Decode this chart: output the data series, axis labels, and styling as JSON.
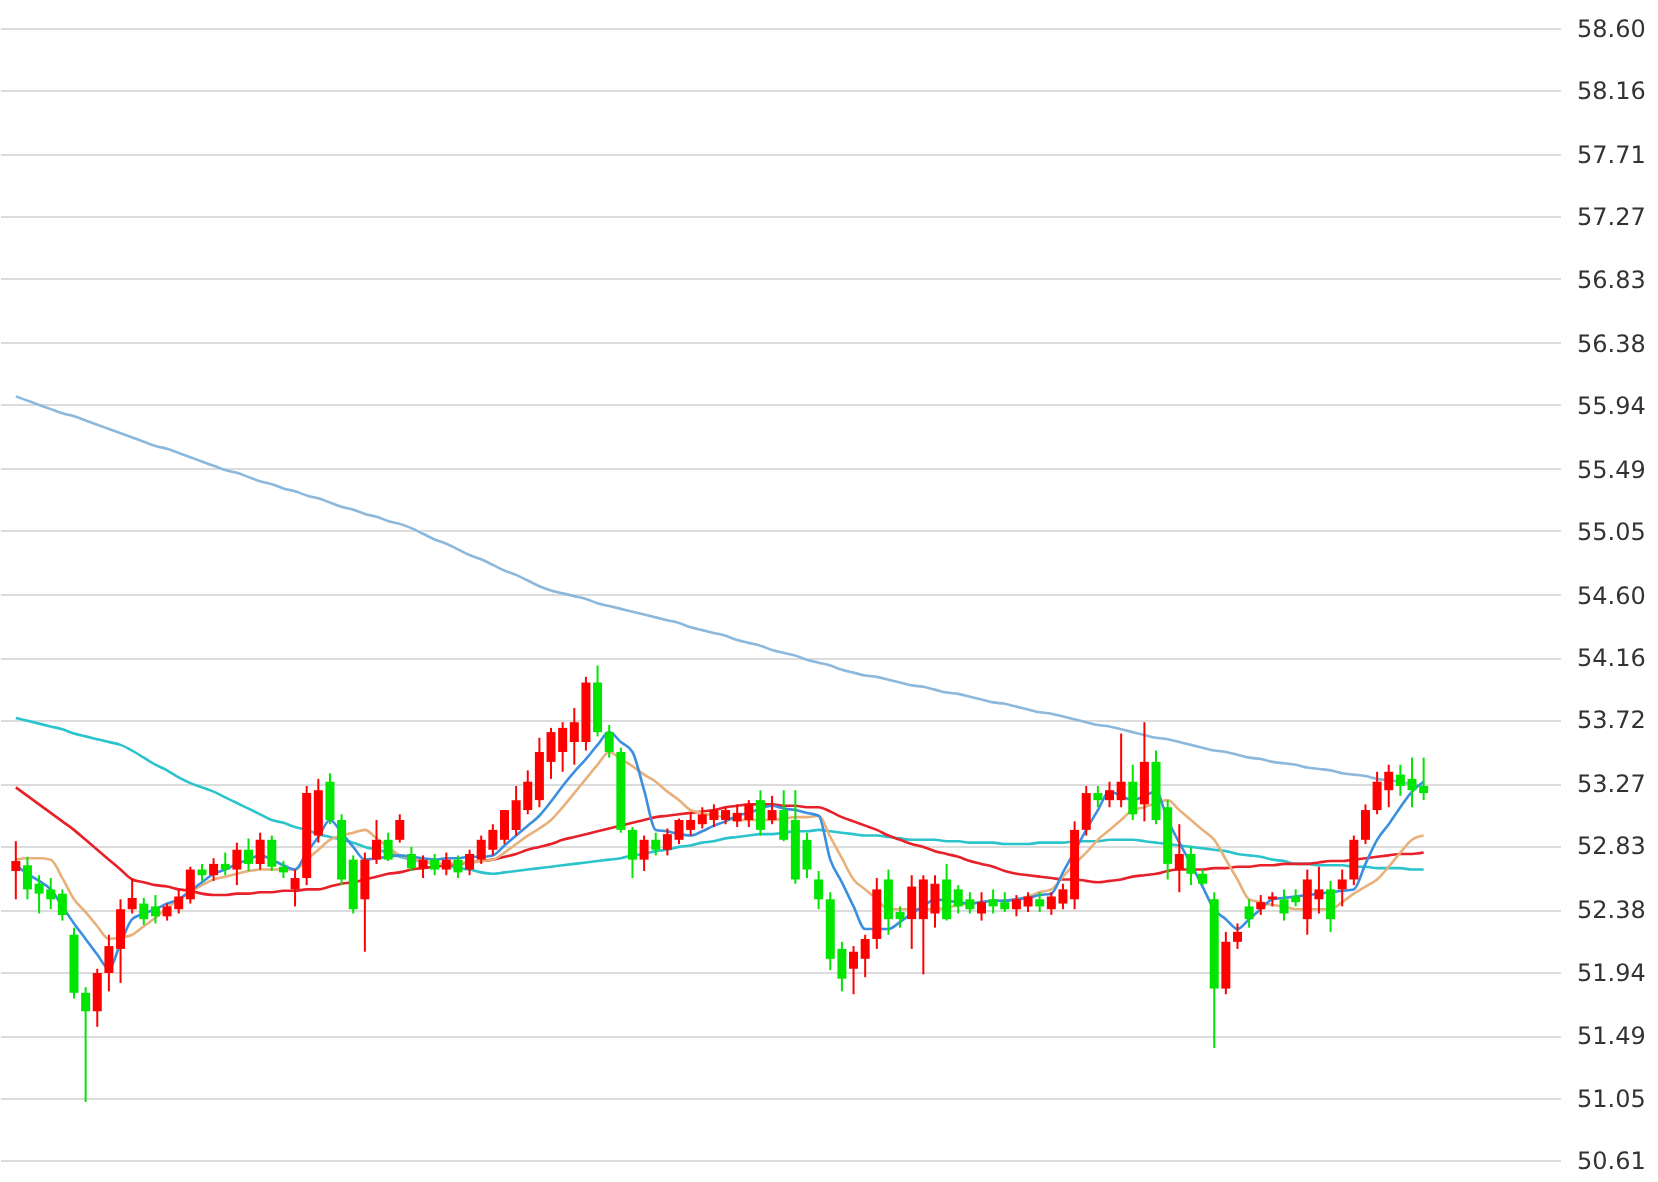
{
  "chart_data": {
    "type": "candlestick",
    "categories": [
      null,
      null,
      null,
      null,
      null,
      null,
      null,
      null,
      null,
      null,
      null,
      null,
      null,
      null,
      null,
      null,
      null,
      null,
      null,
      null,
      null,
      null,
      null,
      null,
      null,
      null,
      null,
      null,
      null,
      null,
      null,
      null,
      null,
      null,
      null,
      null,
      null,
      null,
      null,
      null,
      null,
      null,
      null,
      null,
      null,
      null,
      null,
      null,
      null,
      null,
      null,
      null,
      null,
      null,
      null,
      null,
      null,
      null,
      null,
      null,
      null,
      null,
      null,
      null,
      null,
      null,
      null,
      null,
      null,
      null,
      null,
      null,
      null,
      null,
      null,
      null,
      null,
      null,
      null,
      null,
      null,
      null,
      null,
      null,
      null,
      null,
      null,
      null,
      null,
      null,
      null,
      null,
      null,
      null,
      null,
      null,
      null,
      null,
      null,
      null,
      null,
      null,
      null,
      null,
      null,
      null,
      null,
      null,
      null,
      null,
      null,
      null,
      null,
      null,
      null,
      null,
      null,
      null,
      null,
      null,
      null,
      null
    ],
    "ylim": [
      50.61,
      58.6
    ],
    "yticks": [
      {
        "value": 58.6,
        "label": "58.60"
      },
      58.16,
      57.71,
      57.27,
      56.83,
      56.38,
      55.94,
      55.49,
      55.05,
      {
        "value": 54.6,
        "label": "54.60"
      },
      54.16,
      53.72,
      53.27,
      52.83,
      52.38,
      51.94,
      51.49,
      51.05,
      50.61
    ],
    "grid": "y",
    "tick_labels": "y",
    "series": [
      {
        "type": "line",
        "color": "#8cb8dc",
        "values": [
          56.0,
          55.97,
          55.94,
          55.91,
          55.88,
          55.86,
          55.83,
          55.8,
          55.77,
          55.74,
          55.71,
          55.68,
          55.65,
          55.63,
          55.6,
          55.57,
          55.54,
          55.51,
          55.48,
          55.46,
          55.43,
          55.4,
          55.38,
          55.35,
          55.33,
          55.3,
          55.28,
          55.25,
          55.22,
          55.2,
          55.17,
          55.15,
          55.12,
          55.1,
          55.07,
          55.03,
          54.99,
          54.96,
          54.92,
          54.88,
          54.85,
          54.81,
          54.77,
          54.74,
          54.7,
          54.66,
          54.63,
          54.61,
          54.59,
          54.57,
          54.54,
          54.52,
          54.5,
          54.48,
          54.46,
          54.44,
          54.42,
          54.4,
          54.37,
          54.35,
          54.33,
          54.31,
          54.28,
          54.26,
          54.24,
          54.21,
          54.19,
          54.17,
          54.14,
          54.12,
          54.1,
          54.07,
          54.05,
          54.03,
          54.02,
          54.0,
          53.98,
          53.96,
          53.95,
          53.93,
          53.91,
          53.9,
          53.88,
          53.86,
          53.84,
          53.83,
          53.81,
          53.79,
          53.77,
          53.76,
          53.74,
          53.72,
          53.7,
          53.68,
          53.67,
          53.65,
          53.63,
          53.61,
          53.59,
          53.58,
          53.56,
          53.54,
          53.52,
          53.5,
          53.49,
          53.47,
          53.45,
          53.44,
          53.42,
          53.41,
          53.4,
          53.38,
          53.37,
          53.36,
          53.34,
          53.33,
          53.32,
          53.3,
          53.29,
          53.28,
          53.26,
          53.25
        ]
      },
      {
        "type": "line",
        "color": "#2bc4cc",
        "values": [
          53.73,
          53.71,
          53.69,
          53.67,
          53.65,
          53.62,
          53.6,
          53.58,
          53.56,
          53.54,
          53.5,
          53.45,
          53.4,
          53.36,
          53.31,
          53.27,
          53.24,
          53.21,
          53.17,
          53.13,
          53.09,
          53.05,
          53.01,
          52.99,
          52.96,
          52.94,
          52.91,
          52.89,
          52.87,
          52.85,
          52.82,
          52.8,
          52.78,
          52.75,
          52.73,
          52.72,
          52.7,
          52.69,
          52.67,
          52.66,
          52.64,
          52.63,
          52.64,
          52.65,
          52.66,
          52.67,
          52.68,
          52.69,
          52.7,
          52.71,
          52.72,
          52.73,
          52.74,
          52.76,
          52.77,
          52.79,
          52.8,
          52.82,
          52.83,
          52.85,
          52.86,
          52.88,
          52.89,
          52.9,
          52.91,
          52.91,
          52.92,
          52.93,
          52.93,
          52.94,
          52.93,
          52.92,
          52.91,
          52.9,
          52.9,
          52.89,
          52.88,
          52.87,
          52.87,
          52.87,
          52.86,
          52.86,
          52.85,
          52.85,
          52.85,
          52.84,
          52.84,
          52.84,
          52.85,
          52.85,
          52.85,
          52.86,
          52.86,
          52.86,
          52.87,
          52.87,
          52.87,
          52.86,
          52.85,
          52.84,
          52.83,
          52.82,
          52.81,
          52.8,
          52.79,
          52.77,
          52.76,
          52.75,
          52.73,
          52.72,
          52.7,
          52.7,
          52.69,
          52.69,
          52.69,
          52.68,
          52.68,
          52.67,
          52.67,
          52.67,
          52.66,
          52.66
        ]
      },
      {
        "type": "line",
        "color": "#e8202a",
        "values": [
          53.24,
          53.18,
          53.12,
          53.06,
          53.0,
          52.94,
          52.87,
          52.8,
          52.73,
          52.66,
          52.59,
          52.57,
          52.55,
          52.54,
          52.52,
          52.51,
          52.49,
          52.48,
          52.48,
          52.49,
          52.49,
          52.5,
          52.5,
          52.51,
          52.51,
          52.52,
          52.52,
          52.54,
          52.56,
          52.57,
          52.59,
          52.61,
          52.63,
          52.64,
          52.66,
          52.67,
          52.68,
          52.69,
          52.7,
          52.71,
          52.72,
          52.73,
          52.75,
          52.77,
          52.8,
          52.82,
          52.84,
          52.87,
          52.89,
          52.91,
          52.93,
          52.95,
          52.97,
          52.99,
          53.01,
          53.03,
          53.04,
          53.05,
          53.06,
          53.07,
          53.08,
          53.1,
          53.11,
          53.12,
          53.12,
          53.12,
          53.11,
          53.11,
          53.1,
          53.1,
          53.07,
          53.03,
          53.0,
          52.97,
          52.94,
          52.9,
          52.87,
          52.84,
          52.82,
          52.79,
          52.77,
          52.75,
          52.72,
          52.7,
          52.68,
          52.65,
          52.63,
          52.62,
          52.61,
          52.6,
          52.59,
          52.59,
          52.58,
          52.57,
          52.58,
          52.59,
          52.61,
          52.62,
          52.63,
          52.65,
          52.66,
          52.66,
          52.66,
          52.67,
          52.67,
          52.68,
          52.68,
          52.69,
          52.69,
          52.7,
          52.7,
          52.7,
          52.71,
          52.72,
          52.72,
          52.73,
          52.74,
          52.75,
          52.76,
          52.77,
          52.77,
          52.78
        ]
      },
      {
        "type": "line",
        "color": "#e8b07a",
        "values": [
          52.73,
          52.74,
          52.74,
          52.73,
          52.6,
          52.45,
          52.36,
          52.26,
          52.17,
          52.18,
          52.2,
          52.26,
          52.32,
          52.39,
          52.45,
          52.5,
          52.55,
          52.59,
          52.61,
          52.63,
          52.65,
          52.66,
          52.66,
          52.66,
          52.66,
          52.73,
          52.8,
          52.87,
          52.9,
          52.92,
          52.94,
          52.88,
          52.82,
          52.76,
          52.74,
          52.72,
          52.7,
          52.7,
          52.71,
          52.71,
          52.72,
          52.73,
          52.78,
          52.84,
          52.9,
          52.95,
          53.01,
          53.1,
          53.2,
          53.3,
          53.4,
          53.49,
          53.44,
          53.39,
          53.33,
          53.28,
          53.21,
          53.15,
          53.08,
          53.06,
          53.04,
          53.03,
          53.01,
          53.01,
          53.01,
          53.01,
          53.02,
          53.03,
          53.03,
          53.04,
          52.89,
          52.74,
          52.59,
          52.52,
          52.45,
          52.38,
          52.38,
          52.38,
          52.38,
          52.38,
          52.39,
          52.41,
          52.42,
          52.43,
          52.44,
          52.44,
          52.45,
          52.47,
          52.5,
          52.52,
          52.61,
          52.7,
          52.78,
          52.87,
          52.94,
          53.01,
          53.08,
          53.1,
          53.13,
          53.15,
          53.08,
          53.01,
          52.94,
          52.87,
          52.73,
          52.59,
          52.45,
          52.43,
          52.41,
          52.4,
          52.38,
          52.38,
          52.38,
          52.38,
          52.43,
          52.49,
          52.54,
          52.59,
          52.68,
          52.78,
          52.87,
          52.9
        ]
      },
      {
        "type": "line",
        "color": "#3b8fe0",
        "values": [
          52.69,
          52.63,
          52.58,
          52.52,
          52.4,
          52.28,
          52.17,
          52.06,
          51.96,
          52.14,
          52.31,
          52.35,
          52.38,
          52.42,
          52.45,
          52.51,
          52.57,
          52.63,
          52.66,
          52.7,
          52.73,
          52.76,
          52.73,
          52.69,
          52.66,
          52.78,
          52.89,
          53.01,
          52.92,
          52.82,
          52.73,
          52.74,
          52.75,
          52.76,
          52.75,
          52.74,
          52.73,
          52.74,
          52.74,
          52.75,
          52.75,
          52.76,
          52.83,
          52.9,
          52.97,
          53.04,
          53.14,
          53.25,
          53.35,
          53.44,
          53.54,
          53.63,
          53.56,
          53.49,
          53.22,
          52.94,
          52.93,
          52.91,
          52.9,
          52.93,
          52.97,
          53.0,
          53.04,
          53.06,
          53.09,
          53.11,
          53.09,
          53.08,
          53.06,
          53.04,
          52.73,
          52.57,
          52.4,
          52.24,
          52.24,
          52.24,
          52.29,
          52.35,
          52.4,
          52.45,
          52.44,
          52.43,
          52.42,
          52.43,
          52.44,
          52.44,
          52.45,
          52.46,
          52.48,
          52.49,
          52.64,
          52.79,
          52.94,
          53.08,
          53.21,
          53.18,
          53.15,
          53.18,
          53.21,
          53.01,
          52.85,
          52.7,
          52.54,
          52.38,
          52.31,
          52.24,
          52.31,
          52.38,
          52.45,
          52.46,
          52.47,
          52.48,
          52.49,
          52.5,
          52.51,
          52.52,
          52.7,
          52.87,
          52.98,
          53.1,
          53.21,
          53.28
        ]
      },
      {
        "colors": [
          "#ff0000",
          "#00e600",
          "#00e600",
          "#00e600",
          "#00e600",
          "#00e600",
          "#00e600",
          "#ff0000",
          "#ff0000",
          "#ff0000",
          "#ff0000",
          "#00e600",
          "#00e600",
          "#ff0000",
          "#ff0000",
          "#ff0000",
          "#00e600",
          "#ff0000",
          "#00e600",
          "#ff0000",
          "#00e600",
          "#ff0000",
          "#00e600",
          "#00e600",
          "#ff0000",
          "#ff0000",
          "#ff0000",
          "#00e600",
          "#00e600",
          "#00e600",
          "#ff0000",
          "#ff0000",
          "#00e600",
          "#ff0000",
          "#00e600",
          "#ff0000",
          "#00e600",
          "#ff0000",
          "#00e600",
          "#ff0000",
          "#ff0000",
          "#ff0000",
          "#ff0000",
          "#ff0000",
          "#ff0000",
          "#ff0000",
          "#ff0000",
          "#ff0000",
          "#ff0000",
          "#ff0000",
          "#00e600",
          "#00e600",
          "#00e600",
          "#00e600",
          "#ff0000",
          "#00e600",
          "#ff0000",
          "#ff0000",
          "#ff0000",
          "#ff0000",
          "#ff0000",
          "#ff0000",
          "#ff0000",
          "#ff0000",
          "#00e600",
          "#ff0000",
          "#00e600",
          "#00e600",
          "#00e600",
          "#00e600",
          "#00e600",
          "#00e600",
          "#ff0000",
          "#ff0000",
          "#ff0000",
          "#00e600",
          "#00e600",
          "#ff0000",
          "#ff0000",
          "#ff0000",
          "#00e600",
          "#00e600",
          "#00e600",
          "#ff0000",
          "#00e600",
          "#00e600",
          "#ff0000",
          "#ff0000",
          "#00e600",
          "#ff0000",
          "#ff0000",
          "#ff0000",
          "#ff0000",
          "#00e600",
          "#ff0000",
          "#ff0000",
          "#00e600",
          "#ff0000",
          "#00e600",
          "#00e600",
          "#ff0000",
          "#00e600",
          "#00e600",
          "#00e600",
          "#ff0000",
          "#ff0000",
          "#00e600",
          "#ff0000",
          "#ff0000",
          "#00e600",
          "#00e600",
          "#ff0000",
          "#ff0000",
          "#00e600",
          "#ff0000",
          "#ff0000",
          "#ff0000",
          "#ff0000",
          "#ff0000",
          "#00e600",
          "#00e600",
          "#00e600"
        ],
        "ohlc": [
          [
            52.65,
            52.86,
            52.45,
            52.72
          ],
          [
            52.69,
            52.75,
            52.45,
            52.52
          ],
          [
            52.56,
            52.62,
            52.35,
            52.49
          ],
          [
            52.52,
            52.6,
            52.38,
            52.45
          ],
          [
            52.49,
            52.52,
            52.3,
            52.34
          ],
          [
            52.2,
            52.25,
            51.75,
            51.79
          ],
          [
            51.79,
            51.83,
            51.02,
            51.66
          ],
          [
            51.66,
            51.96,
            51.55,
            51.93
          ],
          [
            51.93,
            52.2,
            51.8,
            52.12
          ],
          [
            52.1,
            52.45,
            51.86,
            52.38
          ],
          [
            52.38,
            52.6,
            52.35,
            52.46
          ],
          [
            52.42,
            52.46,
            52.27,
            52.31
          ],
          [
            52.4,
            52.48,
            52.28,
            52.33
          ],
          [
            52.33,
            52.42,
            52.3,
            52.4
          ],
          [
            52.38,
            52.52,
            52.35,
            52.47
          ],
          [
            52.45,
            52.68,
            52.42,
            52.66
          ],
          [
            52.66,
            52.7,
            52.58,
            52.62
          ],
          [
            52.62,
            52.74,
            52.58,
            52.7
          ],
          [
            52.7,
            52.78,
            52.62,
            52.66
          ],
          [
            52.66,
            52.85,
            52.55,
            52.8
          ],
          [
            52.8,
            52.88,
            52.65,
            52.7
          ],
          [
            52.7,
            52.92,
            52.66,
            52.87
          ],
          [
            52.87,
            52.9,
            52.65,
            52.68
          ],
          [
            52.68,
            52.72,
            52.6,
            52.64
          ],
          [
            52.52,
            52.66,
            52.4,
            52.6
          ],
          [
            52.6,
            53.25,
            52.55,
            53.2
          ],
          [
            52.9,
            53.3,
            52.85,
            53.22
          ],
          [
            53.28,
            53.34,
            52.98,
            53.01
          ],
          [
            53.01,
            53.05,
            52.55,
            52.59
          ],
          [
            52.73,
            52.76,
            52.35,
            52.38
          ],
          [
            52.45,
            52.78,
            52.08,
            52.73
          ],
          [
            52.73,
            53.01,
            52.7,
            52.87
          ],
          [
            52.87,
            52.92,
            52.72,
            52.73
          ],
          [
            52.87,
            53.05,
            52.85,
            53.01
          ],
          [
            52.77,
            52.82,
            52.65,
            52.67
          ],
          [
            52.67,
            52.76,
            52.6,
            52.73
          ],
          [
            52.73,
            52.77,
            52.62,
            52.66
          ],
          [
            52.66,
            52.78,
            52.62,
            52.73
          ],
          [
            52.73,
            52.76,
            52.6,
            52.64
          ],
          [
            52.66,
            52.8,
            52.62,
            52.77
          ],
          [
            52.73,
            52.9,
            52.7,
            52.87
          ],
          [
            52.8,
            52.98,
            52.76,
            52.94
          ],
          [
            52.87,
            53.08,
            52.84,
            53.08
          ],
          [
            52.94,
            53.25,
            52.9,
            53.15
          ],
          [
            53.08,
            53.36,
            53.05,
            53.28
          ],
          [
            53.15,
            53.59,
            53.1,
            53.49
          ],
          [
            53.42,
            53.66,
            53.3,
            53.63
          ],
          [
            53.49,
            53.7,
            53.35,
            53.66
          ],
          [
            53.56,
            53.8,
            53.4,
            53.7
          ],
          [
            53.56,
            54.02,
            53.5,
            53.98
          ],
          [
            53.98,
            54.1,
            53.6,
            53.63
          ],
          [
            53.63,
            53.68,
            53.45,
            53.49
          ],
          [
            53.49,
            53.52,
            52.92,
            52.94
          ],
          [
            52.94,
            52.96,
            52.6,
            52.73
          ],
          [
            52.73,
            52.9,
            52.65,
            52.87
          ],
          [
            52.87,
            52.92,
            52.76,
            52.8
          ],
          [
            52.8,
            52.95,
            52.76,
            52.91
          ],
          [
            52.87,
            53.02,
            52.84,
            53.01
          ],
          [
            52.94,
            53.06,
            52.9,
            53.01
          ],
          [
            52.98,
            53.1,
            52.95,
            53.05
          ],
          [
            53.01,
            53.12,
            52.96,
            53.08
          ],
          [
            53.01,
            53.1,
            52.98,
            53.08
          ],
          [
            53.0,
            53.12,
            52.96,
            53.06
          ],
          [
            53.01,
            53.15,
            52.96,
            53.12
          ],
          [
            53.15,
            53.22,
            52.9,
            52.94
          ],
          [
            53.01,
            53.18,
            52.98,
            53.08
          ],
          [
            53.08,
            53.22,
            52.86,
            52.87
          ],
          [
            53.01,
            53.22,
            52.56,
            52.59
          ],
          [
            52.87,
            52.92,
            52.6,
            52.66
          ],
          [
            52.59,
            52.65,
            52.38,
            52.45
          ],
          [
            52.45,
            52.5,
            51.95,
            52.03
          ],
          [
            52.1,
            52.15,
            51.8,
            51.89
          ],
          [
            51.96,
            52.12,
            51.78,
            52.08
          ],
          [
            52.03,
            52.2,
            51.9,
            52.17
          ],
          [
            52.17,
            52.6,
            52.1,
            52.52
          ],
          [
            52.59,
            52.66,
            52.2,
            52.31
          ],
          [
            52.36,
            52.4,
            52.25,
            52.31
          ],
          [
            52.31,
            52.62,
            52.1,
            52.54
          ],
          [
            52.31,
            52.62,
            51.92,
            52.59
          ],
          [
            52.35,
            52.62,
            52.25,
            52.56
          ],
          [
            52.59,
            52.7,
            52.3,
            52.31
          ],
          [
            52.52,
            52.55,
            52.35,
            52.4
          ],
          [
            52.45,
            52.5,
            52.35,
            52.38
          ],
          [
            52.35,
            52.5,
            52.3,
            52.43
          ],
          [
            52.45,
            52.52,
            52.35,
            52.4
          ],
          [
            52.43,
            52.5,
            52.36,
            52.38
          ],
          [
            52.38,
            52.48,
            52.33,
            52.45
          ],
          [
            52.4,
            52.5,
            52.36,
            52.47
          ],
          [
            52.45,
            52.5,
            52.36,
            52.4
          ],
          [
            52.38,
            52.5,
            52.34,
            52.47
          ],
          [
            52.42,
            52.56,
            52.38,
            52.52
          ],
          [
            52.45,
            53.0,
            52.38,
            52.94
          ],
          [
            52.94,
            53.25,
            52.9,
            53.2
          ],
          [
            53.2,
            53.25,
            53.1,
            53.15
          ],
          [
            53.15,
            53.28,
            53.1,
            53.22
          ],
          [
            53.15,
            53.62,
            53.1,
            53.28
          ],
          [
            53.28,
            53.4,
            53.01,
            53.05
          ],
          [
            53.12,
            53.7,
            53.0,
            53.42
          ],
          [
            53.42,
            53.5,
            52.98,
            53.01
          ],
          [
            53.1,
            53.15,
            52.59,
            52.7
          ],
          [
            52.66,
            52.98,
            52.5,
            52.77
          ],
          [
            52.77,
            52.82,
            52.55,
            52.63
          ],
          [
            52.63,
            52.66,
            52.55,
            52.56
          ],
          [
            52.45,
            52.5,
            51.4,
            51.82
          ],
          [
            51.82,
            52.22,
            51.78,
            52.15
          ],
          [
            52.15,
            52.28,
            52.1,
            52.22
          ],
          [
            52.4,
            52.45,
            52.25,
            52.31
          ],
          [
            52.38,
            52.48,
            52.34,
            52.43
          ],
          [
            52.45,
            52.5,
            52.4,
            52.47
          ],
          [
            52.45,
            52.52,
            52.3,
            52.35
          ],
          [
            52.47,
            52.52,
            52.4,
            52.43
          ],
          [
            52.31,
            52.66,
            52.2,
            52.59
          ],
          [
            52.45,
            52.68,
            52.35,
            52.52
          ],
          [
            52.52,
            52.58,
            52.22,
            52.31
          ],
          [
            52.52,
            52.66,
            52.4,
            52.59
          ],
          [
            52.59,
            52.9,
            52.55,
            52.87
          ],
          [
            52.87,
            53.12,
            52.84,
            53.08
          ],
          [
            53.08,
            53.35,
            53.05,
            53.28
          ],
          [
            53.22,
            53.4,
            53.1,
            53.35
          ],
          [
            53.33,
            53.4,
            53.18,
            53.25
          ],
          [
            53.3,
            53.45,
            53.1,
            53.22
          ],
          [
            53.25,
            53.45,
            53.15,
            53.2
          ]
        ]
      }
    ]
  }
}
